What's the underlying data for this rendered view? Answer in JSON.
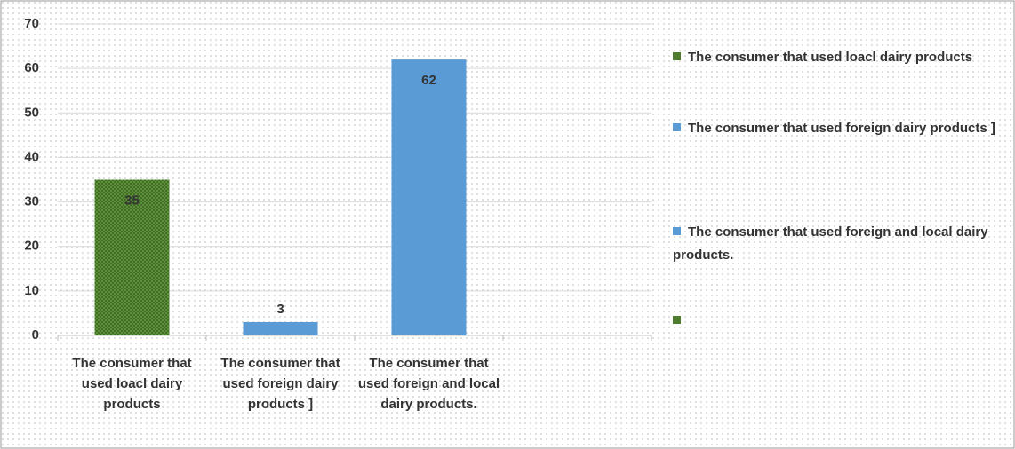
{
  "chart_data": {
    "type": "bar",
    "categories": [
      "The consumer that used loacl dairy products",
      "The consumer that used foreign dairy products ]",
      "The consumer that used foreign and local dairy products.",
      null
    ],
    "values": [
      35,
      3,
      62,
      null
    ],
    "colors": [
      "#4e7d2e",
      "#5b9bd5",
      "#5b9bd5",
      "#4e7d2e"
    ],
    "ylim": [
      0,
      70
    ],
    "yticks": [
      0,
      10,
      20,
      30,
      40,
      50,
      60,
      70
    ],
    "grid": true,
    "legend": "right"
  }
}
